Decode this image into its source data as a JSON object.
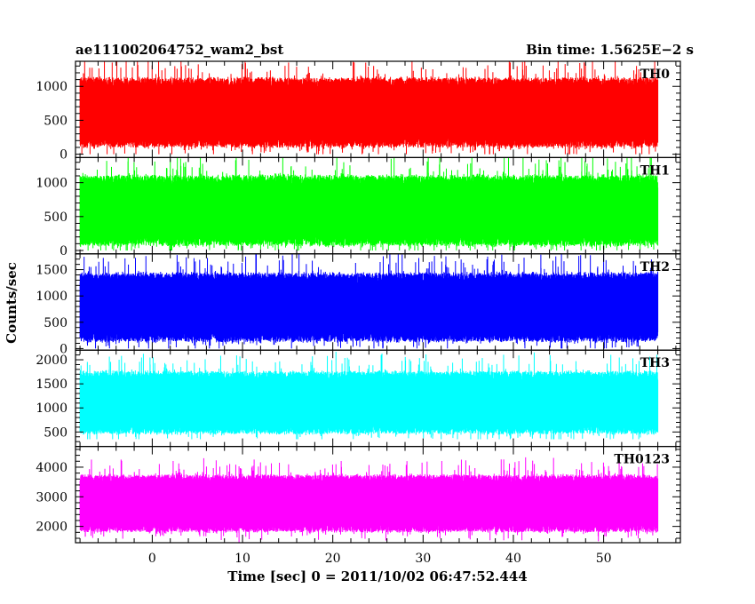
{
  "header": {
    "title": "ae111002064752_wam2_bst",
    "bin_time": "Bin time: 1.5625E−2 s"
  },
  "chart_data": {
    "type": "line",
    "title": "ae111002064752_wam2_bst",
    "subtitle": "Bin time: 1.5625E−2 s",
    "xlabel": "Time [sec] 0 = 2011/10/02 06:47:52.444",
    "ylabel": "Counts/sec",
    "xlim": [
      -8.5,
      58.5
    ],
    "data_range_x": [
      -8,
      56
    ],
    "x_ticks": [
      0,
      10,
      20,
      30,
      40,
      50
    ],
    "x_tick_labels": [
      "0",
      "10",
      "20",
      "30",
      "40",
      "50"
    ],
    "grid": false,
    "legend": "none",
    "panels": [
      {
        "name": "TH0",
        "color": "#ff0000",
        "ylim": [
          -50,
          1370
        ],
        "y_ticks": [
          0,
          500,
          1000
        ],
        "y_tick_labels": [
          "0",
          "500",
          "1000"
        ],
        "typical_low": 150,
        "typical_high": 1080,
        "min": 0,
        "max": 1370
      },
      {
        "name": "TH1",
        "color": "#00ff00",
        "ylim": [
          -50,
          1370
        ],
        "y_ticks": [
          0,
          500,
          1000
        ],
        "y_tick_labels": [
          "0",
          "500",
          "1000"
        ],
        "typical_low": 120,
        "typical_high": 1060,
        "min": 0,
        "max": 1370
      },
      {
        "name": "TH2",
        "color": "#0000ff",
        "ylim": [
          -30,
          1800
        ],
        "y_ticks": [
          0,
          500,
          1000,
          1500
        ],
        "y_tick_labels": [
          "0",
          "500",
          "1000",
          "1500"
        ],
        "typical_low": 190,
        "typical_high": 1380,
        "min": 0,
        "max": 1800
      },
      {
        "name": "TH3",
        "color": "#00ffff",
        "ylim": [
          200,
          2200
        ],
        "y_ticks": [
          500,
          1000,
          1500,
          2000
        ],
        "y_tick_labels": [
          "500",
          "1000",
          "1500",
          "2000"
        ],
        "typical_low": 520,
        "typical_high": 1700,
        "min": 350,
        "max": 2200
      },
      {
        "name": "TH0123",
        "color": "#ff00ff",
        "ylim": [
          1450,
          4700
        ],
        "y_ticks": [
          2000,
          3000,
          4000
        ],
        "y_tick_labels": [
          "2000",
          "3000",
          "4000"
        ],
        "typical_low": 1900,
        "typical_high": 3650,
        "min": 1450,
        "max": 4700
      }
    ]
  }
}
